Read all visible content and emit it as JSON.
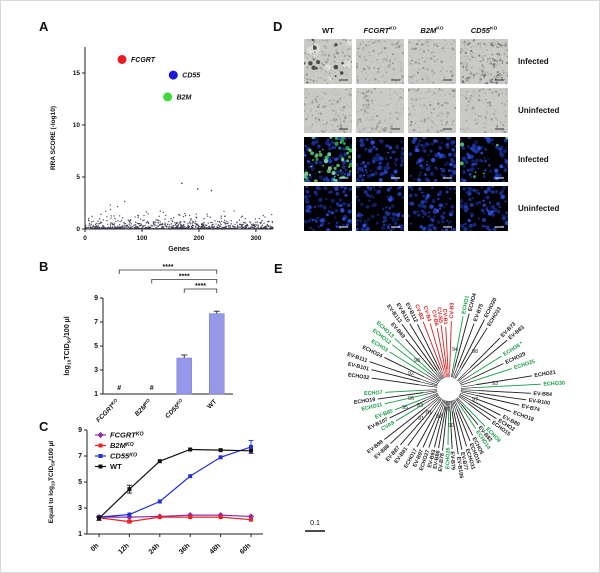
{
  "figure": {
    "panels": {
      "A": {
        "letter": "A"
      },
      "B": {
        "letter": "B"
      },
      "C": {
        "letter": "C"
      },
      "D": {
        "letter": "D",
        "column_headers": [
          "WT",
          "FCGRT^KO",
          "B2M^KO",
          "CD55^KO"
        ],
        "row_labels": [
          "Infected",
          "Uninfected",
          "Infected",
          "Uninfected"
        ],
        "row_types": [
          "brightfield",
          "brightfield",
          "fluorescence",
          "fluorescence"
        ],
        "brightfield_style": [
          [
            "plaque",
            "normal",
            "normal",
            "dense"
          ],
          [
            "normal",
            "normal",
            "normal",
            "normal"
          ]
        ],
        "green_signal_level": [
          [
            0,
            0,
            0,
            0
          ],
          [
            0,
            0,
            0,
            0
          ],
          [
            3,
            0,
            0,
            1
          ],
          [
            0,
            0,
            0,
            0
          ]
        ]
      },
      "E": {
        "letter": "E",
        "scale_bar_label": "0.1"
      }
    }
  },
  "chart_data": [
    {
      "panel": "A",
      "type": "scatter",
      "xlabel": "Genes",
      "ylabel": "RRA SCORE (-log10)",
      "xlim": [
        0,
        330
      ],
      "xticks": [
        0,
        100,
        200,
        300
      ],
      "ylim": [
        0,
        17.5
      ],
      "yticks": [
        0,
        5,
        10,
        15
      ],
      "background_color": "#34344a",
      "background_count": 620,
      "background_band_count": 220,
      "background_outliers": [
        {
          "x": 170,
          "y": 4.4
        },
        {
          "x": 198,
          "y": 3.85
        },
        {
          "x": 222,
          "y": 3.7
        }
      ],
      "highlighted": [
        {
          "label": "FCGRT",
          "x": 65,
          "y": 16.3,
          "color": "#ed1c24"
        },
        {
          "label": "CD55",
          "x": 155,
          "y": 14.8,
          "color": "#1b1bd6"
        },
        {
          "label": "B2M",
          "x": 145,
          "y": 12.7,
          "color": "#3fd93f"
        }
      ]
    },
    {
      "panel": "B",
      "type": "bar",
      "ylabel": "log~10~TCID~50~/100 µl",
      "categories": [
        "FCGRT^KO",
        "B2M^KO",
        "CD55^KO",
        "WT"
      ],
      "values": [
        null,
        null,
        4.0,
        7.7
      ],
      "errors": [
        null,
        null,
        0.25,
        0.2
      ],
      "undetected_marker": "#",
      "ylim": [
        1,
        9
      ],
      "yticks": [
        1,
        3,
        5,
        7,
        9
      ],
      "bar_color": "#9597e8",
      "significance": [
        {
          "from": 0,
          "to": 3,
          "label": "****"
        },
        {
          "from": 1,
          "to": 3,
          "label": "****"
        },
        {
          "from": 2,
          "to": 3,
          "label": "****"
        }
      ]
    },
    {
      "panel": "C",
      "type": "line",
      "ylabel": "Equal to log~10~TCID~50~/100 µl",
      "categories": [
        "0h",
        "12h",
        "24h",
        "36h",
        "48h",
        "60h"
      ],
      "ylim": [
        1,
        9
      ],
      "yticks": [
        1,
        3,
        5,
        7,
        9
      ],
      "series": [
        {
          "name": "FCGRT^KO",
          "color": "#8b2fa8",
          "marker": "diamond",
          "values": [
            2.3,
            2.3,
            2.35,
            2.45,
            2.45,
            2.35
          ],
          "errors": [
            0,
            0,
            0,
            0,
            0,
            0
          ]
        },
        {
          "name": "B2M^KO",
          "color": "#ed2024",
          "marker": "square",
          "values": [
            2.25,
            1.95,
            2.3,
            2.3,
            2.3,
            2.1
          ],
          "errors": [
            0,
            0.1,
            0,
            0,
            0,
            0
          ]
        },
        {
          "name": "CD55^KO",
          "color": "#2130d6",
          "marker": "square",
          "values": [
            2.3,
            2.5,
            3.5,
            5.45,
            6.9,
            7.7
          ],
          "errors": [
            0,
            0,
            0,
            0,
            0,
            0.5
          ]
        },
        {
          "name": "WT",
          "color": "#111111",
          "marker": "square",
          "values": [
            2.2,
            4.45,
            6.6,
            7.5,
            7.45,
            7.4
          ],
          "errors": [
            0.15,
            0.3,
            0,
            0,
            0,
            0
          ]
        }
      ],
      "legend_position": "top-left"
    },
    {
      "panel": "E",
      "type": "phylogenetic-tree",
      "layout": "unrooted-radial",
      "scale_bar": "0.1",
      "colors": {
        "K": "#1a1a1a",
        "G": "#169c46",
        "R": "#d42020"
      },
      "leaves": [
        [
          "ECHO32",
          172,
          30,
          78,
          "K"
        ],
        [
          "EV-B101",
          166,
          30,
          80,
          "K"
        ],
        [
          "EV-B111",
          161,
          30,
          84,
          "K"
        ],
        [
          "ECHO24",
          154,
          28,
          72,
          "K"
        ],
        [
          "ECHO3",
          148,
          28,
          70,
          "G"
        ],
        [
          "ECHO12",
          142,
          26,
          72,
          "G"
        ],
        [
          "ECHO13",
          137,
          26,
          74,
          "G"
        ],
        [
          "EV-B69",
          131,
          24,
          66,
          "K"
        ],
        [
          "EV-B113",
          126,
          22,
          80,
          "K"
        ],
        [
          "EV-B110",
          121,
          22,
          76,
          "K"
        ],
        [
          "EV-B112",
          116,
          22,
          72,
          "K"
        ],
        [
          "CV-B2",
          111,
          20,
          72,
          "R"
        ],
        [
          "CV-B4",
          106,
          20,
          68,
          "R"
        ],
        [
          "CV-B6",
          101,
          20,
          62,
          "R"
        ],
        [
          "CV-B5",
          97,
          20,
          64,
          "R"
        ],
        [
          "CV-B1",
          93,
          20,
          62,
          "R"
        ],
        [
          "CV-B3",
          88,
          20,
          68,
          "R"
        ],
        [
          "ECHO1",
          79,
          22,
          74,
          "G"
        ],
        [
          "ECHO4",
          75,
          22,
          78,
          "K"
        ],
        [
          "EV-B75",
          69,
          24,
          70,
          "K"
        ],
        [
          "ECHO20",
          63,
          24,
          78,
          "K"
        ],
        [
          "ECHO33",
          58,
          24,
          72,
          "K"
        ],
        [
          "EV-B73",
          45,
          30,
          72,
          "K"
        ],
        [
          "EV-B83",
          40,
          30,
          76,
          "K"
        ],
        [
          "ECHO6 *",
          32,
          28,
          62,
          "G"
        ],
        [
          "ECHO29",
          25,
          26,
          60,
          "K"
        ],
        [
          "ECHO25",
          18,
          26,
          66,
          "G"
        ],
        [
          "ECHO21",
          9,
          28,
          84,
          "K"
        ],
        [
          "ECHO30",
          3,
          28,
          92,
          "G"
        ],
        [
          "ECHO7",
          183,
          26,
          64,
          "G"
        ],
        [
          "ECHO19",
          188,
          26,
          72,
          "K"
        ],
        [
          "ECHO11",
          193,
          24,
          66,
          "G"
        ],
        [
          "EV-B85",
          201,
          26,
          58,
          "G"
        ],
        [
          "EV-B107",
          206,
          26,
          66,
          "K"
        ],
        [
          "CVA9",
          211,
          28,
          62,
          "G"
        ],
        [
          "EV-B98",
          218,
          30,
          82,
          "K"
        ],
        [
          "EV-B88",
          223,
          30,
          80,
          "K"
        ],
        [
          "EV-B87",
          229,
          28,
          74,
          "K"
        ],
        [
          "EV-B81",
          234,
          28,
          70,
          "K"
        ],
        [
          "ECHO17",
          241,
          26,
          66,
          "K"
        ],
        [
          "EV-B97",
          246,
          26,
          64,
          "K"
        ],
        [
          "ECHO27",
          251,
          24,
          62,
          "K"
        ],
        [
          "EV-B93",
          256,
          24,
          60,
          "K"
        ],
        [
          "EV-B86",
          260,
          22,
          60,
          "K"
        ],
        [
          "EV-B78",
          264,
          22,
          62,
          "K"
        ],
        [
          "ECHO26",
          269,
          20,
          56,
          "G"
        ],
        [
          "EV-B79",
          273,
          22,
          60,
          "K"
        ],
        [
          "EV-B106",
          278,
          22,
          66,
          "K"
        ],
        [
          "EV-B77",
          282,
          24,
          62,
          "K"
        ],
        [
          "ECHO31",
          287,
          24,
          60,
          "K"
        ],
        [
          "ECHO16",
          292,
          22,
          56,
          "K"
        ],
        [
          "ECHO5",
          297,
          22,
          52,
          "K"
        ],
        [
          "ECHO14",
          304,
          20,
          48,
          "G"
        ],
        [
          "EV-B82",
          309,
          20,
          46,
          "K"
        ],
        [
          "ECHO9",
          314,
          22,
          52,
          "G"
        ],
        [
          "ECHO15",
          323,
          24,
          52,
          "K"
        ],
        [
          "ECHO2",
          328,
          24,
          56,
          "K"
        ],
        [
          "EV-B80",
          333,
          26,
          58,
          "K"
        ],
        [
          "ECHO18",
          340,
          28,
          66,
          "K"
        ],
        [
          "EV-B74",
          347,
          28,
          72,
          "K"
        ],
        [
          "EV-B100",
          352,
          30,
          78,
          "K"
        ],
        [
          "EV-B84",
          357,
          30,
          82,
          "K"
        ]
      ],
      "support_values": [
        {
          "value": 94,
          "x": 176,
          "y": 84
        },
        {
          "value": 98,
          "x": 196,
          "y": 86
        },
        {
          "value": 98,
          "x": 138,
          "y": 95
        },
        {
          "value": 92,
          "x": 132,
          "y": 108
        },
        {
          "value": 96,
          "x": 132,
          "y": 133
        },
        {
          "value": 95,
          "x": 126,
          "y": 142
        },
        {
          "value": 83,
          "x": 141,
          "y": 140
        },
        {
          "value": 91,
          "x": 142,
          "y": 153
        },
        {
          "value": 81,
          "x": 150,
          "y": 147
        },
        {
          "value": 92,
          "x": 160,
          "y": 151
        },
        {
          "value": 80,
          "x": 168,
          "y": 144
        },
        {
          "value": 90,
          "x": 172,
          "y": 160
        },
        {
          "value": 97,
          "x": 196,
          "y": 134
        },
        {
          "value": 93,
          "x": 216,
          "y": 118
        }
      ]
    }
  ]
}
